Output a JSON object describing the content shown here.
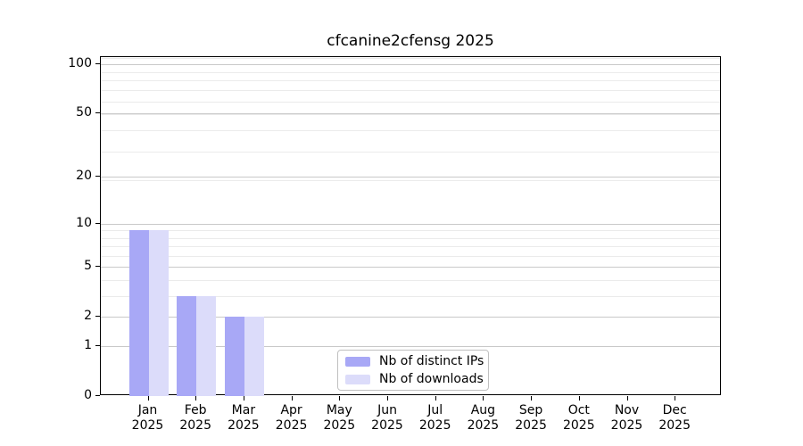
{
  "figure": {
    "title": "cfcanine2cfensg 2025"
  },
  "chart_data": {
    "type": "bar",
    "title": "cfcanine2cfensg 2025",
    "categories": [
      "Jan",
      "Feb",
      "Mar",
      "Apr",
      "May",
      "Jun",
      "Jul",
      "Aug",
      "Sep",
      "Oct",
      "Nov",
      "Dec"
    ],
    "x_year": "2025",
    "series": [
      {
        "name": "Nb of distinct IPs",
        "color": "#a8a8f6",
        "values": [
          9,
          3,
          2,
          0,
          0,
          0,
          0,
          0,
          0,
          0,
          0,
          0
        ]
      },
      {
        "name": "Nb of downloads",
        "color": "#dcdcfa",
        "values": [
          9,
          3,
          2,
          0,
          0,
          0,
          0,
          0,
          0,
          0,
          0,
          0
        ]
      }
    ],
    "xlabel": "",
    "ylabel": "",
    "yscale": "log1p",
    "ytick_values": [
      100,
      50,
      20,
      10,
      5,
      2,
      1,
      0
    ],
    "ylim": [
      0,
      110
    ],
    "grid": true,
    "grid_major_color": "#c9c9c9",
    "grid_minor_color": "#ebebeb",
    "legend_position": "lower center",
    "background_color": "#ffffff",
    "text_color": "#000000"
  },
  "legend": {
    "entries": [
      {
        "label": "Nb of distinct IPs"
      },
      {
        "label": "Nb of downloads"
      }
    ]
  }
}
